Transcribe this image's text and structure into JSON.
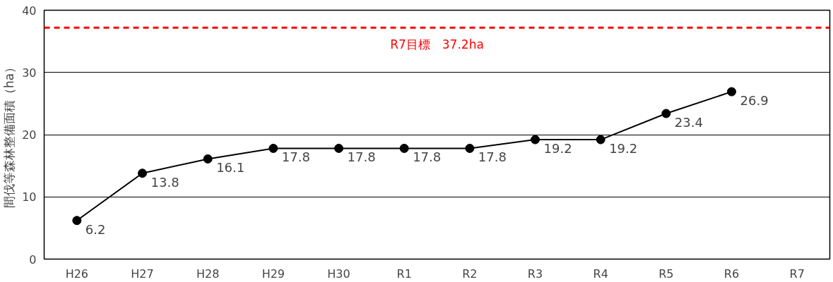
{
  "chart_data": {
    "type": "line",
    "categories": [
      "H26",
      "H27",
      "H28",
      "H29",
      "H30",
      "R1",
      "R2",
      "R3",
      "R4",
      "R5",
      "R6",
      "R7"
    ],
    "values": [
      6.2,
      13.8,
      16.1,
      17.8,
      17.8,
      17.8,
      17.8,
      19.2,
      19.2,
      23.4,
      26.9,
      null
    ],
    "color": "#000000",
    "ylabel": "間伐等森林整備面積（ha）",
    "ylim": [
      0,
      40
    ],
    "yticks": [
      0,
      10,
      20,
      30,
      40
    ],
    "grid": "y",
    "marker": "circle",
    "line_style": "solid",
    "data_labels": true,
    "ref_lines": [
      {
        "axis": "y",
        "value": 37.2,
        "label": "R7目標　37.2ha",
        "color": "#ff0000",
        "line_style": "dashed"
      }
    ]
  }
}
